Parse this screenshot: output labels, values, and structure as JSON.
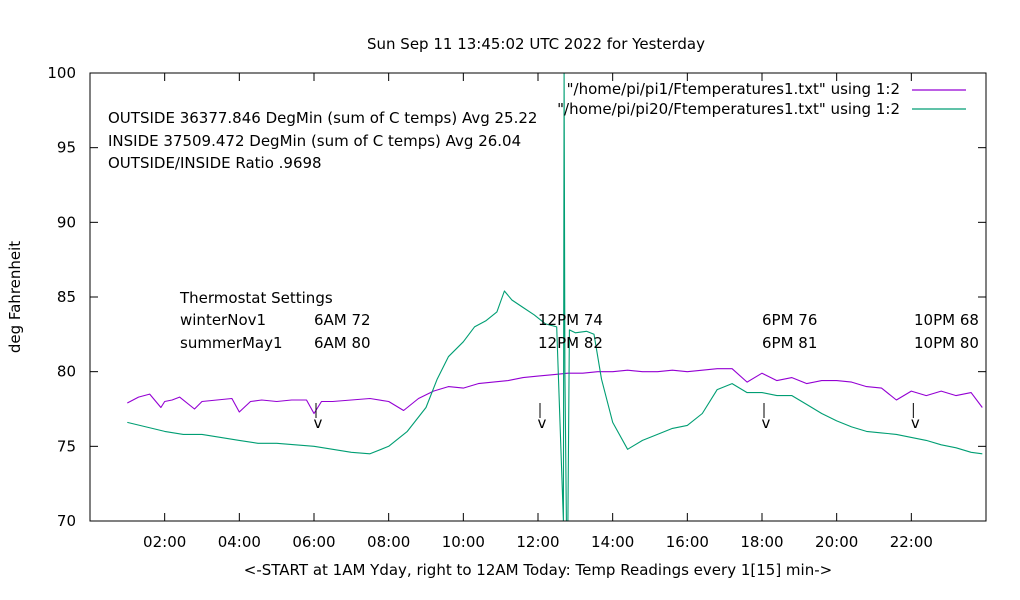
{
  "chart_data": {
    "type": "line",
    "title": "Sun Sep 11 13:45:02 UTC 2022 for Yesterday",
    "xlabel": "<-START at 1AM Yday, right to 12AM Today:  Temp Readings every 1[15] min->",
    "ylabel": "deg Fahrenheit",
    "xlim": [
      0,
      24
    ],
    "ylim": [
      70,
      100
    ],
    "x_ticks": [
      2,
      4,
      6,
      8,
      10,
      12,
      14,
      16,
      18,
      20,
      22
    ],
    "x_tick_labels": [
      "02:00",
      "04:00",
      "06:00",
      "08:00",
      "10:00",
      "12:00",
      "14:00",
      "16:00",
      "18:00",
      "20:00",
      "22:00"
    ],
    "y_ticks": [
      70,
      75,
      80,
      85,
      90,
      95,
      100
    ],
    "y_tick_labels": [
      "70",
      "75",
      "80",
      "85",
      "90",
      "95",
      "100"
    ],
    "legend_position": "top-right",
    "series": [
      {
        "name": "\"/home/pi/pi1/Ftemperatures1.txt\" using 1:2",
        "color": "#9400d3",
        "x": [
          1.0,
          1.3,
          1.6,
          1.9,
          2.0,
          2.2,
          2.4,
          2.8,
          3.0,
          3.4,
          3.8,
          4.0,
          4.3,
          4.6,
          5.0,
          5.4,
          5.8,
          6.0,
          6.2,
          6.5,
          7.0,
          7.5,
          8.0,
          8.4,
          8.8,
          9.2,
          9.6,
          10.0,
          10.4,
          10.8,
          11.2,
          11.6,
          12.0,
          12.4,
          12.8,
          13.2,
          13.6,
          14.0,
          14.4,
          14.8,
          15.2,
          15.6,
          16.0,
          16.4,
          16.8,
          17.2,
          17.6,
          18.0,
          18.4,
          18.8,
          19.2,
          19.6,
          20.0,
          20.4,
          20.8,
          21.2,
          21.6,
          22.0,
          22.4,
          22.8,
          23.2,
          23.6,
          23.9
        ],
        "y": [
          77.9,
          78.3,
          78.5,
          77.6,
          78.0,
          78.1,
          78.3,
          77.5,
          78.0,
          78.1,
          78.2,
          77.3,
          78.0,
          78.1,
          78.0,
          78.1,
          78.1,
          77.2,
          78.0,
          78.0,
          78.1,
          78.2,
          78.0,
          77.4,
          78.2,
          78.7,
          79.0,
          78.9,
          79.2,
          79.3,
          79.4,
          79.6,
          79.7,
          79.8,
          79.9,
          79.9,
          80.0,
          80.0,
          80.1,
          80.0,
          80.0,
          80.1,
          80.0,
          80.1,
          80.2,
          80.2,
          79.3,
          79.9,
          79.4,
          79.6,
          79.2,
          79.4,
          79.4,
          79.3,
          79.0,
          78.9,
          78.1,
          78.7,
          78.4,
          78.7,
          78.4,
          78.6,
          77.6
        ]
      },
      {
        "name": "\"/home/pi/pi20/Ftemperatures1.txt\" using 1:2",
        "color": "#009e73",
        "x": [
          1.0,
          1.5,
          2.0,
          2.5,
          3.0,
          3.5,
          4.0,
          4.5,
          5.0,
          5.5,
          6.0,
          6.5,
          7.0,
          7.5,
          8.0,
          8.5,
          9.0,
          9.3,
          9.6,
          10.0,
          10.3,
          10.6,
          10.9,
          11.1,
          11.3,
          11.6,
          11.9,
          12.2,
          12.5,
          12.68,
          12.7,
          12.72,
          12.76,
          12.8,
          12.84,
          13.0,
          13.3,
          13.5,
          13.7,
          14.0,
          14.4,
          14.8,
          15.2,
          15.6,
          16.0,
          16.4,
          16.8,
          17.2,
          17.6,
          18.0,
          18.4,
          18.8,
          19.2,
          19.6,
          20.0,
          20.4,
          20.8,
          21.2,
          21.6,
          22.0,
          22.4,
          22.8,
          23.2,
          23.6,
          23.9
        ],
        "y": [
          76.6,
          76.3,
          76.0,
          75.8,
          75.8,
          75.6,
          75.4,
          75.2,
          75.2,
          75.1,
          75.0,
          74.8,
          74.6,
          74.5,
          75.0,
          76.0,
          77.6,
          79.5,
          81.0,
          82.0,
          83.0,
          83.4,
          84.0,
          85.4,
          84.8,
          84.3,
          83.8,
          83.2,
          83.0,
          70.0,
          100.0,
          80.0,
          70.0,
          70.0,
          82.8,
          82.6,
          82.7,
          82.5,
          79.5,
          76.6,
          74.8,
          75.4,
          75.8,
          76.2,
          76.4,
          77.2,
          78.8,
          79.2,
          78.6,
          78.6,
          78.4,
          78.4,
          77.8,
          77.2,
          76.7,
          76.3,
          76.0,
          75.9,
          75.8,
          75.6,
          75.4,
          75.1,
          74.9,
          74.6,
          74.5
        ]
      }
    ]
  },
  "annotations": {
    "stats": [
      "OUTSIDE 36377.846 DegMin (sum of C temps) Avg 25.22",
      "INSIDE 37509.472 DegMin (sum of C temps) Avg 26.04",
      "OUTSIDE/INSIDE Ratio .9698"
    ],
    "thermostat_title": "Thermostat Settings",
    "thermostat_rows": [
      {
        "name": "winterNov1",
        "c1": "6AM 72",
        "c2": "12PM 74",
        "c3": "6PM 76",
        "c4": "10PM 68"
      },
      {
        "name": "summerMay1",
        "c1": "6AM 80",
        "c2": "12PM 82",
        "c3": "6PM 81",
        "c4": "10PM 80"
      }
    ],
    "arrow_glyph": "v",
    "arrow_x": [
      6,
      12,
      18,
      22
    ]
  }
}
